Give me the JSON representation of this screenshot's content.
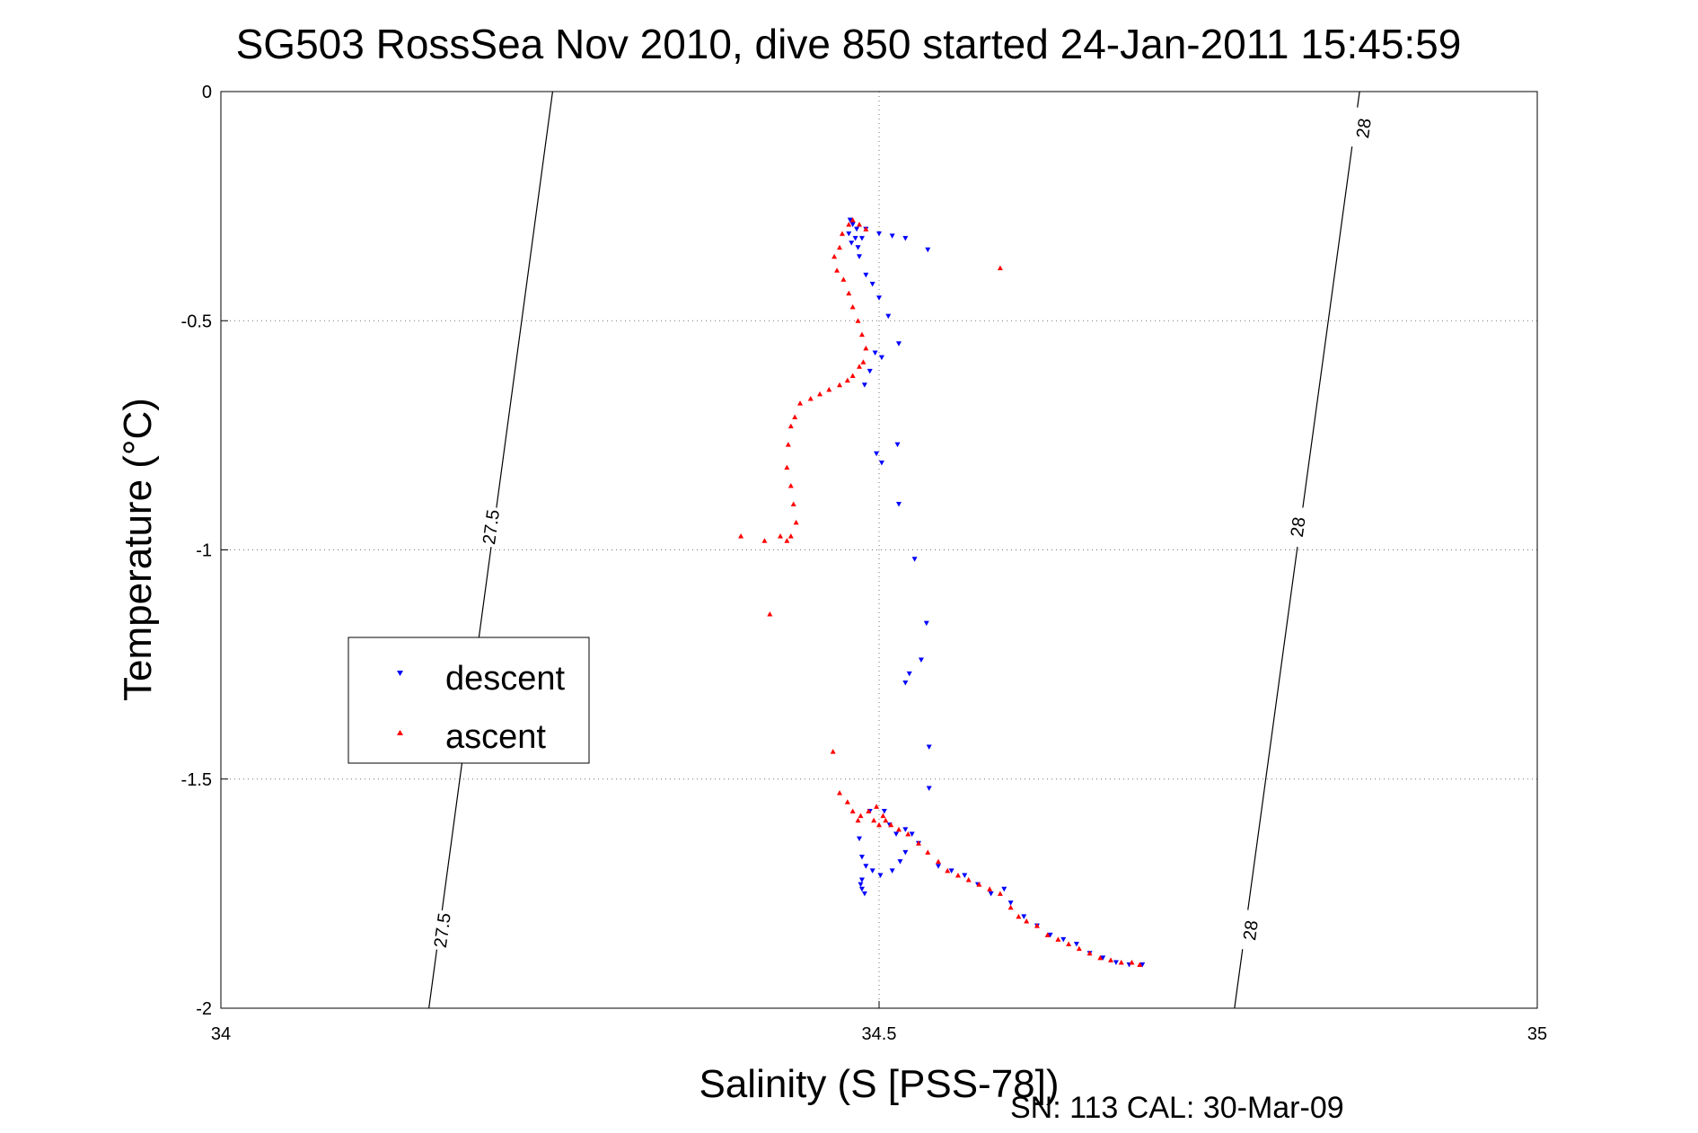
{
  "chart_data": {
    "type": "scatter",
    "title": "SG503 RossSea Nov 2010, dive 850 started 24-Jan-2011 15:45:59",
    "xlabel": "Salinity (S [PSS-78])",
    "ylabel": "Temperature (°C)",
    "xlim": [
      34,
      35
    ],
    "ylim": [
      -2,
      0
    ],
    "xticks": [
      "34",
      "34.5",
      "35"
    ],
    "yticks": [
      "0",
      "-0.5",
      "-1",
      "-1.5",
      "-2"
    ],
    "grid": true,
    "legend_position": "middle-left",
    "footer": "SN: 113  CAL: 30-Mar-09",
    "density_contours": [
      {
        "label": "27.5",
        "points": [
          [
            34.158,
            -2.0
          ],
          [
            34.252,
            0.0
          ]
        ],
        "label_positions": [
          [
            34.168,
            -1.83
          ],
          [
            34.205,
            -0.95
          ]
        ]
      },
      {
        "label": "28",
        "points": [
          [
            34.77,
            -2.0
          ],
          [
            34.865,
            0.0
          ]
        ],
        "label_positions": [
          [
            34.782,
            -1.83
          ],
          [
            34.818,
            -0.95
          ],
          [
            34.868,
            -0.08
          ]
        ]
      }
    ],
    "series": [
      {
        "name": "descent",
        "color": "#0000ff",
        "marker": "triangle-down",
        "points": [
          [
            34.478,
            -0.28
          ],
          [
            34.48,
            -0.29
          ],
          [
            34.483,
            -0.3
          ],
          [
            34.477,
            -0.31
          ],
          [
            34.482,
            -0.32
          ],
          [
            34.479,
            -0.33
          ],
          [
            34.484,
            -0.34
          ],
          [
            34.487,
            -0.32
          ],
          [
            34.49,
            -0.3
          ],
          [
            34.5,
            -0.31
          ],
          [
            34.51,
            -0.315
          ],
          [
            34.52,
            -0.32
          ],
          [
            34.537,
            -0.345
          ],
          [
            34.485,
            -0.36
          ],
          [
            34.49,
            -0.4
          ],
          [
            34.495,
            -0.42
          ],
          [
            34.5,
            -0.45
          ],
          [
            34.507,
            -0.49
          ],
          [
            34.515,
            -0.55
          ],
          [
            34.497,
            -0.57
          ],
          [
            34.502,
            -0.58
          ],
          [
            34.493,
            -0.61
          ],
          [
            34.489,
            -0.64
          ],
          [
            34.498,
            -0.79
          ],
          [
            34.502,
            -0.81
          ],
          [
            34.514,
            -0.77
          ],
          [
            34.515,
            -0.9
          ],
          [
            34.527,
            -1.02
          ],
          [
            34.536,
            -1.16
          ],
          [
            34.532,
            -1.24
          ],
          [
            34.523,
            -1.27
          ],
          [
            34.52,
            -1.29
          ],
          [
            34.538,
            -1.43
          ],
          [
            34.538,
            -1.52
          ],
          [
            34.485,
            -1.63
          ],
          [
            34.493,
            -1.57
          ],
          [
            34.504,
            -1.57
          ],
          [
            34.508,
            -1.6
          ],
          [
            34.513,
            -1.62
          ],
          [
            34.52,
            -1.61
          ],
          [
            34.525,
            -1.62
          ],
          [
            34.53,
            -1.64
          ],
          [
            34.487,
            -1.67
          ],
          [
            34.49,
            -1.69
          ],
          [
            34.495,
            -1.7
          ],
          [
            34.501,
            -1.71
          ],
          [
            34.51,
            -1.7
          ],
          [
            34.516,
            -1.68
          ],
          [
            34.52,
            -1.66
          ],
          [
            34.487,
            -1.72
          ],
          [
            34.486,
            -1.73
          ],
          [
            34.487,
            -1.74
          ],
          [
            34.489,
            -1.75
          ],
          [
            34.545,
            -1.69
          ],
          [
            34.555,
            -1.7
          ],
          [
            34.565,
            -1.71
          ],
          [
            34.575,
            -1.73
          ],
          [
            34.585,
            -1.75
          ],
          [
            34.595,
            -1.74
          ],
          [
            34.6,
            -1.77
          ],
          [
            34.61,
            -1.8
          ],
          [
            34.62,
            -1.82
          ],
          [
            34.63,
            -1.84
          ],
          [
            34.64,
            -1.85
          ],
          [
            34.65,
            -1.86
          ],
          [
            34.66,
            -1.88
          ],
          [
            34.67,
            -1.89
          ],
          [
            34.68,
            -1.9
          ],
          [
            34.69,
            -1.905
          ],
          [
            34.7,
            -1.905
          ]
        ]
      },
      {
        "name": "ascent",
        "color": "#ff0000",
        "marker": "triangle-up",
        "points": [
          [
            34.48,
            -0.28
          ],
          [
            34.485,
            -0.29
          ],
          [
            34.49,
            -0.3
          ],
          [
            34.477,
            -0.29
          ],
          [
            34.472,
            -0.31
          ],
          [
            34.47,
            -0.34
          ],
          [
            34.466,
            -0.36
          ],
          [
            34.468,
            -0.39
          ],
          [
            34.473,
            -0.41
          ],
          [
            34.477,
            -0.44
          ],
          [
            34.48,
            -0.47
          ],
          [
            34.484,
            -0.5
          ],
          [
            34.487,
            -0.53
          ],
          [
            34.49,
            -0.56
          ],
          [
            34.488,
            -0.59
          ],
          [
            34.485,
            -0.6
          ],
          [
            34.48,
            -0.62
          ],
          [
            34.476,
            -0.63
          ],
          [
            34.47,
            -0.64
          ],
          [
            34.462,
            -0.65
          ],
          [
            34.455,
            -0.66
          ],
          [
            34.448,
            -0.67
          ],
          [
            34.44,
            -0.68
          ],
          [
            34.436,
            -0.71
          ],
          [
            34.433,
            -0.73
          ],
          [
            34.431,
            -0.77
          ],
          [
            34.43,
            -0.82
          ],
          [
            34.433,
            -0.86
          ],
          [
            34.435,
            -0.9
          ],
          [
            34.437,
            -0.94
          ],
          [
            34.433,
            -0.97
          ],
          [
            34.43,
            -0.98
          ],
          [
            34.425,
            -0.97
          ],
          [
            34.413,
            -0.98
          ],
          [
            34.395,
            -0.97
          ],
          [
            34.417,
            -1.14
          ],
          [
            34.465,
            -1.44
          ],
          [
            34.592,
            -0.385
          ],
          [
            34.47,
            -1.53
          ],
          [
            34.476,
            -1.55
          ],
          [
            34.48,
            -1.57
          ],
          [
            34.486,
            -1.58
          ],
          [
            34.492,
            -1.57
          ],
          [
            34.498,
            -1.56
          ],
          [
            34.503,
            -1.58
          ],
          [
            34.509,
            -1.6
          ],
          [
            34.515,
            -1.61
          ],
          [
            34.522,
            -1.62
          ],
          [
            34.53,
            -1.64
          ],
          [
            34.537,
            -1.66
          ],
          [
            34.545,
            -1.68
          ],
          [
            34.552,
            -1.7
          ],
          [
            34.56,
            -1.71
          ],
          [
            34.568,
            -1.72
          ],
          [
            34.576,
            -1.73
          ],
          [
            34.584,
            -1.74
          ],
          [
            34.592,
            -1.75
          ],
          [
            34.6,
            -1.78
          ],
          [
            34.606,
            -1.8
          ],
          [
            34.612,
            -1.81
          ],
          [
            34.62,
            -1.82
          ],
          [
            34.628,
            -1.84
          ],
          [
            34.636,
            -1.85
          ],
          [
            34.644,
            -1.86
          ],
          [
            34.652,
            -1.87
          ],
          [
            34.66,
            -1.88
          ],
          [
            34.668,
            -1.89
          ],
          [
            34.676,
            -1.895
          ],
          [
            34.684,
            -1.9
          ],
          [
            34.692,
            -1.9
          ],
          [
            34.698,
            -1.905
          ],
          [
            34.496,
            -1.59
          ],
          [
            34.5,
            -1.6
          ],
          [
            34.505,
            -1.59
          ],
          [
            34.484,
            -1.59
          ]
        ]
      }
    ]
  }
}
